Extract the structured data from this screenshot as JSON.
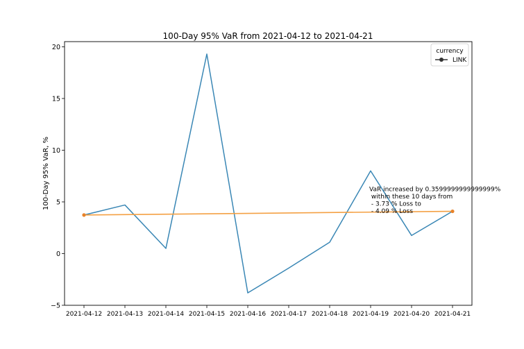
{
  "chart_data": {
    "type": "line",
    "title": "100-Day 95% VaR from 2021-04-12 to 2021-04-21",
    "xlabel": "",
    "ylabel": "100-Day 95% VaR, %",
    "categories": [
      "2021-04-12",
      "2021-04-13",
      "2021-04-14",
      "2021-04-15",
      "2021-04-16",
      "2021-04-17",
      "2021-04-18",
      "2021-04-19",
      "2021-04-20",
      "2021-04-21"
    ],
    "ylim": [
      -5,
      20.5
    ],
    "yticks": [
      -5,
      0,
      5,
      10,
      15,
      20
    ],
    "ytick_labels": [
      "−5",
      "0",
      "5",
      "10",
      "15",
      "20"
    ],
    "grid": false,
    "legend": {
      "title": "currency",
      "position": "top-right",
      "entries": [
        "LINK"
      ]
    },
    "series": [
      {
        "name": "LINK",
        "color": "#3a87b5",
        "values": [
          3.73,
          4.7,
          0.5,
          19.3,
          -3.8,
          -1.4,
          1.1,
          8.0,
          1.75,
          4.09
        ]
      }
    ],
    "trend": {
      "color": "#f4a043",
      "marker_color": "#e8832a",
      "from": {
        "category": "2021-04-12",
        "value": 3.73
      },
      "to": {
        "category": "2021-04-21",
        "value": 4.09
      }
    },
    "annotation": {
      "lines": [
        "VaR increased by 0.3599999999999999%",
        " within these 10 days from",
        " - 3.73 % Loss to",
        " - 4.09 % Loss"
      ],
      "anchor": {
        "category": "2021-04-19",
        "value": 5.3
      }
    }
  }
}
